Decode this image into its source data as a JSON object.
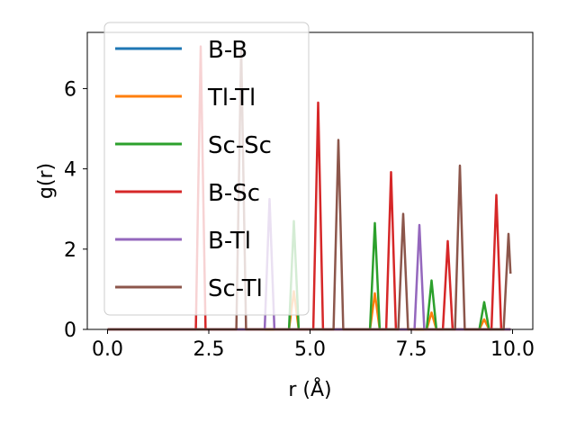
{
  "chart_data": {
    "type": "line",
    "title": "",
    "xlabel": "r (Å)",
    "ylabel": "g(r)",
    "xlim": [
      -0.5,
      10.5
    ],
    "ylim": [
      0,
      7.4
    ],
    "xticks": [
      0.0,
      2.5,
      5.0,
      7.5,
      10.0
    ],
    "xtick_labels": [
      "0.0",
      "2.5",
      "5.0",
      "7.5",
      "10.0"
    ],
    "yticks": [
      0,
      2,
      4,
      6
    ],
    "ytick_labels": [
      "0",
      "2",
      "4",
      "6"
    ],
    "grid": false,
    "legend_position": "top-left",
    "series": [
      {
        "name": "B-B",
        "color": "#1f77b4",
        "peaks": []
      },
      {
        "name": "Tl-Tl",
        "color": "#ff7f0e",
        "peaks": [
          [
            4.6,
            0.95
          ],
          [
            6.6,
            0.9
          ],
          [
            8.0,
            0.42
          ],
          [
            9.3,
            0.25
          ]
        ]
      },
      {
        "name": "Sc-Sc",
        "color": "#2ca02c",
        "peaks": [
          [
            4.6,
            2.7
          ],
          [
            6.6,
            2.65
          ],
          [
            8.0,
            1.22
          ],
          [
            9.3,
            0.68
          ]
        ]
      },
      {
        "name": "B-Sc",
        "color": "#d62728",
        "peaks": [
          [
            2.3,
            7.05
          ],
          [
            5.2,
            5.65
          ],
          [
            7.0,
            3.92
          ],
          [
            8.4,
            2.2
          ],
          [
            9.6,
            3.35
          ]
        ]
      },
      {
        "name": "B-Tl",
        "color": "#9467bd",
        "peaks": [
          [
            4.0,
            3.25
          ],
          [
            7.7,
            2.6
          ]
        ]
      },
      {
        "name": "Sc-Tl",
        "color": "#8c564b",
        "peaks": [
          [
            3.3,
            7.0
          ],
          [
            5.7,
            4.72
          ],
          [
            7.3,
            2.88
          ],
          [
            8.7,
            4.08
          ],
          [
            9.9,
            2.38
          ]
        ]
      }
    ]
  }
}
